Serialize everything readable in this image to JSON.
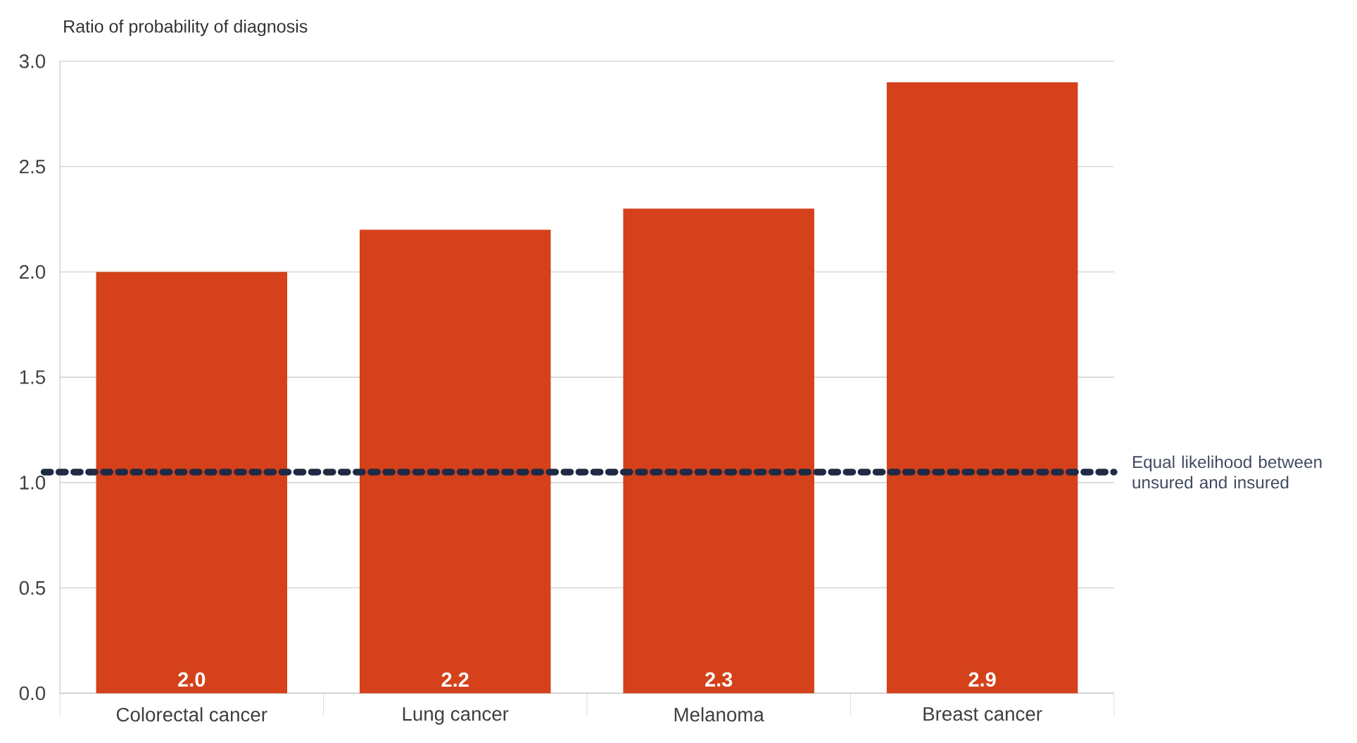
{
  "chart_data": {
    "type": "bar",
    "ylabel": "Ratio of probability of diagnosis",
    "categories": [
      "Colorectal cancer",
      "Lung cancer",
      "Melanoma",
      "Breast cancer"
    ],
    "values": [
      2.0,
      2.2,
      2.3,
      2.9
    ],
    "value_labels": [
      "2.0",
      "2.2",
      "2.3",
      "2.9"
    ],
    "color": "#d4411a",
    "ylim": [
      0,
      3.0
    ],
    "yticks": [
      {
        "value": 0,
        "label": "0.0"
      },
      {
        "value": 0.5,
        "label": "0.5"
      },
      {
        "value": 1.0,
        "label": "1.0"
      },
      {
        "value": 1.5,
        "label": "1.5"
      },
      {
        "value": 2.0,
        "label": "2.0"
      },
      {
        "value": 2.5,
        "label": "2.5"
      },
      {
        "value": 3.0,
        "label": "3.0"
      }
    ],
    "grid": "y",
    "ref_lines": [
      {
        "axis": "y",
        "value": 1.05,
        "label": "Equal likelihood between unsured and insured",
        "color": "#1f2a44",
        "line_style": "dotted"
      }
    ]
  }
}
